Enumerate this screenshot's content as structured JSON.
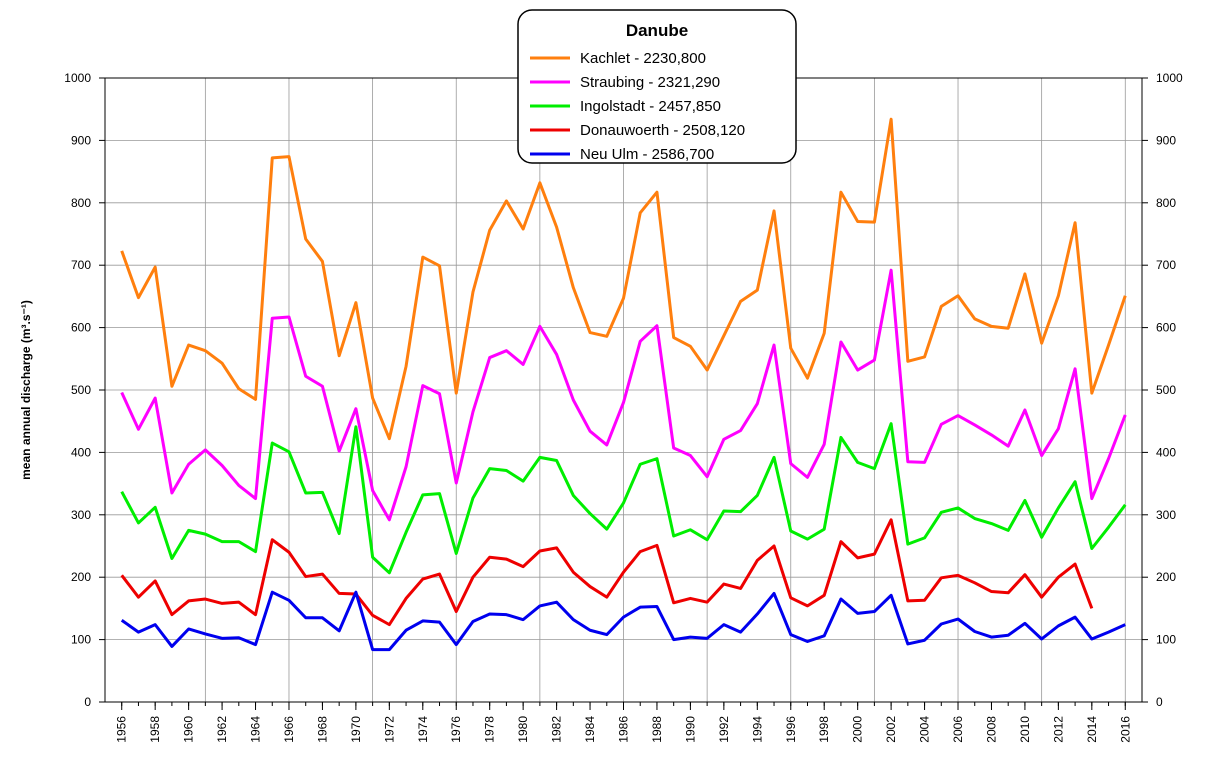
{
  "chart_data": {
    "type": "line",
    "legend_title": "Danube",
    "ylabel": "mean annual discharge (m³.s⁻¹)",
    "x": [
      1956,
      1957,
      1958,
      1959,
      1960,
      1961,
      1962,
      1963,
      1964,
      1965,
      1966,
      1967,
      1968,
      1969,
      1970,
      1971,
      1972,
      1973,
      1974,
      1975,
      1976,
      1977,
      1978,
      1979,
      1980,
      1981,
      1982,
      1983,
      1984,
      1985,
      1986,
      1987,
      1988,
      1989,
      1990,
      1991,
      1992,
      1993,
      1994,
      1995,
      1996,
      1997,
      1998,
      1999,
      2000,
      2001,
      2002,
      2003,
      2004,
      2005,
      2006,
      2007,
      2008,
      2009,
      2010,
      2011,
      2012,
      2013,
      2014,
      2015,
      2016
    ],
    "xlim": [
      1955,
      2017
    ],
    "xticks": [
      1956,
      1958,
      1960,
      1962,
      1964,
      1966,
      1968,
      1970,
      1972,
      1974,
      1976,
      1978,
      1980,
      1982,
      1984,
      1986,
      1988,
      1990,
      1992,
      1994,
      1996,
      1998,
      2000,
      2002,
      2004,
      2006,
      2008,
      2010,
      2012,
      2014,
      2016
    ],
    "xgrid": [
      1961,
      1966,
      1971,
      1976,
      1981,
      1986,
      1991,
      1996,
      2001,
      2006,
      2011,
      2016
    ],
    "ylim": [
      0,
      1000
    ],
    "yticks": [
      0,
      100,
      200,
      300,
      400,
      500,
      600,
      700,
      800,
      900,
      1000
    ],
    "grid": true,
    "legend": "top-center",
    "series": [
      {
        "name": "Kachlet - 2230,800",
        "color": "#ff7f0e",
        "values": [
          723,
          648,
          697,
          506,
          572,
          563,
          543,
          502,
          485,
          872,
          874,
          742,
          706,
          555,
          640,
          487,
          422,
          538,
          713,
          699,
          495,
          657,
          756,
          803,
          758,
          832,
          761,
          664,
          592,
          586,
          647,
          784,
          817,
          584,
          570,
          532,
          587,
          642,
          660,
          787,
          567,
          519,
          591,
          817,
          770,
          769,
          934,
          546,
          553,
          634,
          651,
          614,
          602,
          599,
          686,
          575,
          651,
          768,
          495,
          572,
          651
        ]
      },
      {
        "name": "Straubing - 2321,290",
        "color": "#ff00ff",
        "values": [
          496,
          437,
          487,
          335,
          381,
          404,
          379,
          347,
          326,
          615,
          617,
          522,
          506,
          402,
          470,
          339,
          292,
          377,
          507,
          494,
          351,
          465,
          552,
          563,
          541,
          602,
          557,
          484,
          434,
          412,
          480,
          578,
          603,
          407,
          395,
          361,
          421,
          435,
          478,
          572,
          382,
          360,
          413,
          577,
          532,
          548,
          692,
          385,
          384,
          445,
          459,
          444,
          428,
          410,
          468,
          395,
          438,
          534,
          326,
          390,
          460
        ]
      },
      {
        "name": "Ingolstadt - 2457,850",
        "color": "#00ee00",
        "values": [
          337,
          287,
          312,
          230,
          275,
          269,
          257,
          257,
          241,
          415,
          401,
          335,
          336,
          270,
          441,
          232,
          207,
          272,
          332,
          334,
          238,
          327,
          374,
          371,
          354,
          392,
          387,
          331,
          302,
          277,
          319,
          381,
          390,
          266,
          276,
          260,
          306,
          305,
          331,
          392,
          274,
          261,
          277,
          424,
          384,
          374,
          446,
          253,
          263,
          304,
          311,
          294,
          286,
          275,
          323,
          264,
          311,
          353,
          246,
          280,
          316
        ]
      },
      {
        "name": "Donauwoerth - 2508,120",
        "color": "#ee0000",
        "values": [
          203,
          168,
          194,
          140,
          162,
          165,
          158,
          160,
          140,
          260,
          240,
          201,
          205,
          174,
          173,
          139,
          124,
          166,
          197,
          205,
          145,
          200,
          232,
          229,
          217,
          242,
          247,
          208,
          185,
          168,
          208,
          241,
          251,
          159,
          166,
          160,
          189,
          182,
          227,
          250,
          167,
          154,
          171,
          257,
          231,
          237,
          292,
          162,
          163,
          199,
          203,
          191,
          177,
          175,
          204,
          168,
          200,
          221,
          150,
          null,
          null
        ]
      },
      {
        "name": "Neu Ulm - 2586,700",
        "color": "#0000ee",
        "values": [
          131,
          112,
          124,
          89,
          117,
          109,
          102,
          103,
          92,
          176,
          163,
          135,
          135,
          114,
          176,
          84,
          84,
          115,
          130,
          128,
          92,
          129,
          141,
          140,
          132,
          154,
          160,
          132,
          115,
          108,
          136,
          152,
          153,
          100,
          104,
          102,
          124,
          112,
          141,
          174,
          108,
          97,
          106,
          165,
          142,
          145,
          171,
          93,
          99,
          125,
          133,
          113,
          104,
          107,
          126,
          101,
          122,
          136,
          101,
          112,
          124
        ]
      }
    ]
  }
}
